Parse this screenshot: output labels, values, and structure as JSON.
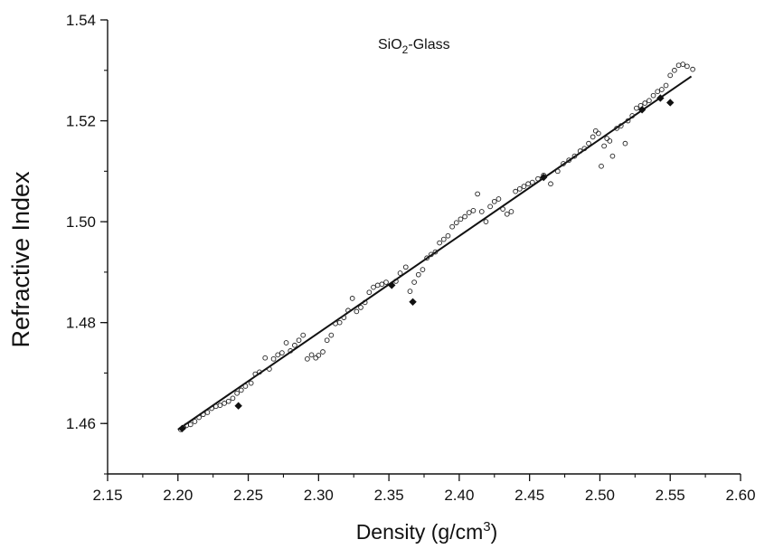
{
  "chart_data": {
    "type": "scatter",
    "annotation": {
      "text": "SiO",
      "sub": "2",
      "suffix": "-Glass"
    },
    "xlabel": {
      "text": "Density (g/cm",
      "sup": "3",
      "suffix": ")"
    },
    "ylabel": "Refractive Index",
    "xlim": [
      2.15,
      2.6
    ],
    "ylim": [
      1.45,
      1.54
    ],
    "x_ticks": [
      "2.15",
      "2.20",
      "2.25",
      "2.30",
      "2.35",
      "2.40",
      "2.45",
      "2.50",
      "2.55",
      "2.60"
    ],
    "y_ticks": [
      "1.46",
      "1.48",
      "1.50",
      "1.52",
      "1.54"
    ],
    "grid": false,
    "legend": "none",
    "series": [
      {
        "marker": "open-circle",
        "color": "#222222",
        "points": [
          [
            2.202,
            1.4588
          ],
          [
            2.204,
            1.4592
          ],
          [
            2.206,
            1.4596
          ],
          [
            2.209,
            1.4598
          ],
          [
            2.212,
            1.4604
          ],
          [
            2.215,
            1.4612
          ],
          [
            2.218,
            1.4618
          ],
          [
            2.221,
            1.4622
          ],
          [
            2.224,
            1.463
          ],
          [
            2.227,
            1.4634
          ],
          [
            2.23,
            1.4636
          ],
          [
            2.233,
            1.464
          ],
          [
            2.236,
            1.4644
          ],
          [
            2.239,
            1.465
          ],
          [
            2.242,
            1.466
          ],
          [
            2.245,
            1.4666
          ],
          [
            2.248,
            1.4674
          ],
          [
            2.252,
            1.468
          ],
          [
            2.255,
            1.4698
          ],
          [
            2.258,
            1.4702
          ],
          [
            2.262,
            1.473
          ],
          [
            2.265,
            1.4708
          ],
          [
            2.268,
            1.4728
          ],
          [
            2.271,
            1.4736
          ],
          [
            2.274,
            1.474
          ],
          [
            2.277,
            1.476
          ],
          [
            2.28,
            1.4744
          ],
          [
            2.283,
            1.4755
          ],
          [
            2.286,
            1.4765
          ],
          [
            2.289,
            1.4775
          ],
          [
            2.292,
            1.4728
          ],
          [
            2.295,
            1.4736
          ],
          [
            2.298,
            1.473
          ],
          [
            2.3,
            1.4735
          ],
          [
            2.303,
            1.4742
          ],
          [
            2.306,
            1.4765
          ],
          [
            2.309,
            1.4775
          ],
          [
            2.312,
            1.4798
          ],
          [
            2.315,
            1.48
          ],
          [
            2.318,
            1.481
          ],
          [
            2.321,
            1.4824
          ],
          [
            2.324,
            1.4848
          ],
          [
            2.327,
            1.4822
          ],
          [
            2.33,
            1.483
          ],
          [
            2.333,
            1.484
          ],
          [
            2.336,
            1.486
          ],
          [
            2.339,
            1.487
          ],
          [
            2.342,
            1.4874
          ],
          [
            2.345,
            1.4876
          ],
          [
            2.348,
            1.488
          ],
          [
            2.355,
            1.4882
          ],
          [
            2.358,
            1.4898
          ],
          [
            2.362,
            1.491
          ],
          [
            2.365,
            1.4862
          ],
          [
            2.368,
            1.488
          ],
          [
            2.371,
            1.4895
          ],
          [
            2.374,
            1.4905
          ],
          [
            2.377,
            1.4928
          ],
          [
            2.38,
            1.4935
          ],
          [
            2.383,
            1.494
          ],
          [
            2.386,
            1.4958
          ],
          [
            2.389,
            1.4965
          ],
          [
            2.392,
            1.4972
          ],
          [
            2.395,
            1.499
          ],
          [
            2.398,
            1.4998
          ],
          [
            2.401,
            1.5005
          ],
          [
            2.404,
            1.501
          ],
          [
            2.407,
            1.5018
          ],
          [
            2.41,
            1.5022
          ],
          [
            2.413,
            1.5055
          ],
          [
            2.416,
            1.502
          ],
          [
            2.419,
            1.5
          ],
          [
            2.422,
            1.503
          ],
          [
            2.425,
            1.504
          ],
          [
            2.428,
            1.5045
          ],
          [
            2.431,
            1.5025
          ],
          [
            2.434,
            1.5015
          ],
          [
            2.437,
            1.502
          ],
          [
            2.44,
            1.506
          ],
          [
            2.443,
            1.5065
          ],
          [
            2.446,
            1.507
          ],
          [
            2.449,
            1.5075
          ],
          [
            2.452,
            1.5078
          ],
          [
            2.456,
            1.5085
          ],
          [
            2.46,
            1.5092
          ],
          [
            2.465,
            1.5075
          ],
          [
            2.47,
            1.51
          ],
          [
            2.474,
            1.5115
          ],
          [
            2.478,
            1.5122
          ],
          [
            2.482,
            1.513
          ],
          [
            2.486,
            1.514
          ],
          [
            2.489,
            1.5145
          ],
          [
            2.492,
            1.5155
          ],
          [
            2.495,
            1.5168
          ],
          [
            2.497,
            1.518
          ],
          [
            2.499,
            1.5175
          ],
          [
            2.501,
            1.511
          ],
          [
            2.503,
            1.515
          ],
          [
            2.505,
            1.5165
          ],
          [
            2.507,
            1.516
          ],
          [
            2.509,
            1.513
          ],
          [
            2.512,
            1.5185
          ],
          [
            2.515,
            1.519
          ],
          [
            2.518,
            1.5155
          ],
          [
            2.52,
            1.52
          ],
          [
            2.523,
            1.521
          ],
          [
            2.526,
            1.5225
          ],
          [
            2.529,
            1.523
          ],
          [
            2.532,
            1.5235
          ],
          [
            2.535,
            1.524
          ],
          [
            2.538,
            1.525
          ],
          [
            2.541,
            1.5258
          ],
          [
            2.544,
            1.5262
          ],
          [
            2.547,
            1.527
          ],
          [
            2.55,
            1.529
          ],
          [
            2.553,
            1.53
          ],
          [
            2.556,
            1.531
          ],
          [
            2.559,
            1.5312
          ],
          [
            2.562,
            1.5308
          ],
          [
            2.566,
            1.5302
          ]
        ]
      },
      {
        "marker": "filled-diamond",
        "color": "#111111",
        "points": [
          [
            2.203,
            1.459
          ],
          [
            2.243,
            1.4635
          ],
          [
            2.352,
            1.4874
          ],
          [
            2.367,
            1.4841
          ],
          [
            2.46,
            1.5088
          ],
          [
            2.53,
            1.5222
          ],
          [
            2.543,
            1.5245
          ],
          [
            2.55,
            1.5236
          ]
        ]
      }
    ],
    "fit_line": {
      "x": [
        2.2,
        2.565
      ],
      "y": [
        1.4588,
        1.5288
      ]
    }
  }
}
